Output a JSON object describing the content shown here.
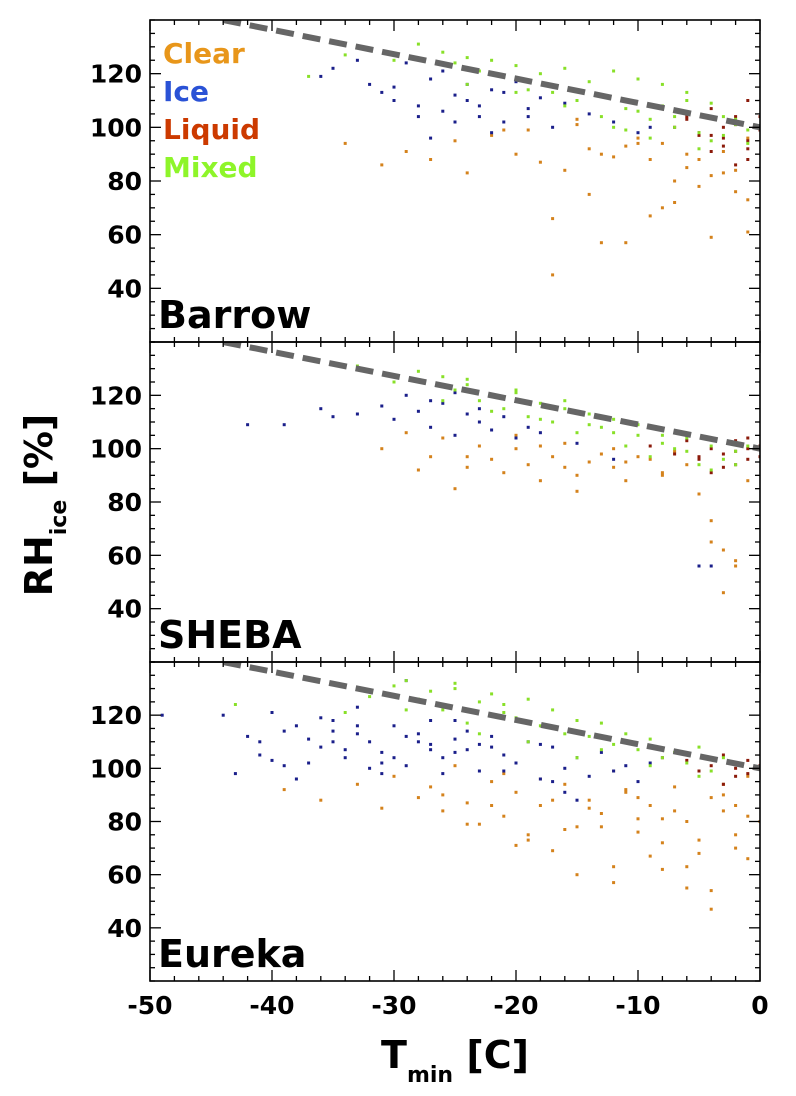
{
  "chart_data": {
    "type": "scatter",
    "xlim": [
      -50,
      0
    ],
    "ylim": [
      20,
      140
    ],
    "x_ticks": [
      "-50",
      "-40",
      "-30",
      "-20",
      "-10",
      "0"
    ],
    "y_ticks": [
      "40",
      "60",
      "80",
      "100",
      "120"
    ],
    "xlabel": {
      "main": "T",
      "sub": "min",
      "unit": " [C]"
    },
    "ylabel": {
      "main": "RH",
      "sub": "ice",
      "unit": " [%]"
    },
    "legend": [
      {
        "name": "Clear",
        "color": "#e8961a"
      },
      {
        "name": "Ice",
        "color": "#2a52d6"
      },
      {
        "name": "Liquid",
        "color": "#cc3a00"
      },
      {
        "name": "Mixed",
        "color": "#8ef52a"
      }
    ],
    "point_colors": {
      "Clear": "#d4821c",
      "Ice": "#1a1f8a",
      "Liquid": "#8b1a0a",
      "Mixed": "#88e028"
    },
    "reference_line": {
      "color": "#666666",
      "x": [
        -44,
        0
      ],
      "y": [
        140,
        100
      ]
    },
    "panels": [
      {
        "name": "Barrow",
        "series": [
          {
            "name": "Mixed",
            "x": [
              -37,
              -34,
              -33,
              -30,
              -28,
              -26,
              -25,
              -24,
              -23,
              -22,
              -21,
              -20,
              -19,
              -18,
              -17,
              -16,
              -15,
              -14,
              -13,
              -12,
              -11,
              -10,
              -9,
              -8,
              -7,
              -6,
              -5,
              -4,
              -3,
              -2,
              -1,
              -13,
              -11,
              -9,
              -7,
              -5,
              -3,
              -24,
              -20,
              -16,
              -12,
              -8,
              -4,
              -2,
              -1,
              -6,
              -10
            ],
            "y": [
              119,
              127,
              130,
              125,
              131,
              128,
              124,
              126,
              121,
              125,
              119,
              123,
              114,
              120,
              113,
              122,
              110,
              117,
              112,
              121,
              107,
              118,
              103,
              116,
              104,
              113,
              98,
              109,
              97,
              101,
              94,
              104,
              99,
              96,
              100,
              92,
              104,
              116,
              113,
              108,
              100,
              108,
              95,
              103,
              99,
              110,
              106
            ]
          },
          {
            "name": "Ice",
            "x": [
              -36,
              -35,
              -32,
              -31,
              -30,
              -29,
              -28,
              -27,
              -26,
              -25,
              -24,
              -23,
              -22,
              -21,
              -20,
              -19,
              -18,
              -17,
              -16,
              -14,
              -12,
              -10,
              -30,
              -28,
              -26,
              -24,
              -22,
              -33,
              -27,
              -25,
              -23,
              -21,
              -19,
              -9
            ],
            "y": [
              119,
              122,
              116,
              113,
              110,
              124,
              108,
              118,
              106,
              112,
              116,
              104,
              114,
              102,
              117,
              107,
              111,
              100,
              109,
              105,
              102,
              98,
              115,
              104,
              121,
              110,
              98,
              125,
              96,
              102,
              108,
              113,
              104,
              100
            ]
          },
          {
            "name": "Liquid",
            "x": [
              -7,
              -6,
              -5,
              -4,
              -3,
              -2,
              -1,
              0,
              -1,
              -2,
              -3,
              -4,
              -5,
              -6,
              -1,
              -2,
              -3,
              0,
              -1,
              -4
            ],
            "y": [
              100,
              104,
              97,
              107,
              93,
              101,
              95,
              99,
              88,
              104,
              96,
              91,
              98,
              103,
              110,
              86,
              100,
              104,
              92,
              97
            ]
          },
          {
            "name": "Clear",
            "x": [
              -34,
              -31,
              -29,
              -27,
              -25,
              -24,
              -22,
              -20,
              -19,
              -18,
              -17,
              -16,
              -15,
              -14,
              -13,
              -12,
              -11,
              -10,
              -9,
              -8,
              -7,
              -6,
              -5,
              -4,
              -3,
              -2,
              -1,
              -17,
              -14,
              -11,
              -9,
              -4,
              -2,
              -1,
              -21,
              -15,
              -13,
              -7,
              -6,
              -5,
              -3,
              -1,
              -10,
              -8
            ],
            "y": [
              94,
              86,
              91,
              88,
              95,
              83,
              97,
              90,
              99,
              87,
              45,
              84,
              101,
              92,
              57,
              89,
              57,
              96,
              67,
              94,
              80,
              85,
              88,
              59,
              91,
              84,
              96,
              66,
              75,
              93,
              88,
              82,
              76,
              61,
              99,
              103,
              90,
              72,
              90,
              78,
              83,
              73,
              94,
              70
            ]
          }
        ]
      },
      {
        "name": "SHEBA",
        "series": [
          {
            "name": "Mixed",
            "x": [
              -33,
              -30,
              -28,
              -26,
              -25,
              -24,
              -23,
              -22,
              -21,
              -20,
              -19,
              -18,
              -17,
              -16,
              -15,
              -14,
              -13,
              -12,
              -11,
              -10,
              -9,
              -8,
              -7,
              -6,
              -5,
              -4,
              -3,
              -2,
              -1,
              -24,
              -20,
              -16,
              -12,
              -8,
              -4,
              -26,
              -22,
              -18,
              -14,
              -10,
              -6,
              -2
            ],
            "y": [
              131,
              125,
              129,
              127,
              122,
              124,
              118,
              120,
              115,
              122,
              112,
              117,
              110,
              118,
              106,
              113,
              108,
              111,
              101,
              109,
              97,
              105,
              100,
              104,
              94,
              101,
              96,
              99,
              101,
              126,
              121,
              115,
              106,
              102,
              92,
              118,
              114,
              111,
              109,
              105,
              99,
              94
            ]
          },
          {
            "name": "Ice",
            "x": [
              -42,
              -39,
              -36,
              -35,
              -33,
              -31,
              -30,
              -29,
              -28,
              -27,
              -26,
              -25,
              -24,
              -23,
              -22,
              -21,
              -20,
              -19,
              -18,
              -15,
              -12,
              -5,
              -4,
              -27,
              -25,
              -23
            ],
            "y": [
              109,
              109,
              115,
              112,
              113,
              116,
              111,
              120,
              114,
              108,
              117,
              105,
              113,
              110,
              107,
              112,
              104,
              108,
              106,
              102,
              96,
              56,
              56,
              118,
              121,
              115
            ]
          },
          {
            "name": "Liquid",
            "x": [
              -9,
              -7,
              -6,
              -5,
              -4,
              -3,
              -2,
              -1,
              0,
              -1,
              -2,
              -3,
              -4,
              -5,
              -1,
              0,
              -2
            ],
            "y": [
              101,
              98,
              103,
              97,
              100,
              93,
              99,
              96,
              101,
              104,
              94,
              98,
              91,
              96,
              100,
              97,
              103
            ]
          },
          {
            "name": "Clear",
            "x": [
              -31,
              -29,
              -27,
              -26,
              -25,
              -24,
              -23,
              -22,
              -21,
              -20,
              -19,
              -18,
              -17,
              -16,
              -15,
              -14,
              -13,
              -12,
              -11,
              -10,
              -9,
              -8,
              -7,
              -6,
              -5,
              -4,
              -3,
              -2,
              -1,
              -28,
              -18,
              -15,
              -11,
              -8,
              -4,
              -3,
              -2,
              -24,
              -20,
              -16,
              -12
            ],
            "y": [
              100,
              106,
              97,
              104,
              85,
              93,
              101,
              96,
              91,
              100,
              94,
              88,
              97,
              102,
              90,
              95,
              98,
              93,
              88,
              97,
              96,
              91,
              99,
              94,
              83,
              65,
              62,
              58,
              88,
              92,
              101,
              84,
              95,
              90,
              73,
              46,
              56,
              97,
              105,
              93,
              100
            ]
          }
        ]
      },
      {
        "name": "Eureka",
        "series": [
          {
            "name": "Mixed",
            "x": [
              -43,
              -34,
              -32,
              -30,
              -29,
              -28,
              -27,
              -26,
              -25,
              -24,
              -23,
              -22,
              -21,
              -20,
              -19,
              -18,
              -17,
              -16,
              -15,
              -14,
              -13,
              -12,
              -11,
              -10,
              -9,
              -8,
              -7,
              -6,
              -5,
              -4,
              -3,
              -25,
              -21,
              -17,
              -13,
              -9,
              -5,
              -29,
              -23,
              -19,
              -15
            ],
            "y": [
              124,
              121,
              127,
              131,
              133,
              126,
              129,
              122,
              130,
              117,
              125,
              128,
              121,
              119,
              126,
              116,
              122,
              113,
              118,
              112,
              117,
              109,
              113,
              107,
              111,
              104,
              106,
              102,
              108,
              99,
              104,
              132,
              124,
              115,
              107,
              101,
              97,
              122,
              113,
              110,
              104
            ]
          },
          {
            "name": "Ice",
            "x": [
              -49,
              -44,
              -43,
              -42,
              -41,
              -40,
              -39,
              -38,
              -37,
              -36,
              -35,
              -34,
              -33,
              -32,
              -31,
              -30,
              -29,
              -28,
              -27,
              -26,
              -25,
              -24,
              -23,
              -22,
              -21,
              -20,
              -19,
              -18,
              -17,
              -16,
              -15,
              -14,
              -13,
              -12,
              -11,
              -10,
              -9,
              -41,
              -39,
              -37,
              -35,
              -33,
              -31,
              -29,
              -27,
              -25,
              -23,
              -38,
              -36,
              -34,
              -32,
              -30,
              -28,
              -26,
              -24,
              -22,
              -20,
              -18,
              -16,
              -40,
              -35,
              -31,
              -27,
              -33,
              -29,
              -25,
              -21,
              -17,
              -15
            ],
            "y": [
              120,
              120,
              98,
              112,
              105,
              121,
              101,
              116,
              111,
              108,
              118,
              104,
              113,
              110,
              106,
              116,
              101,
              113,
              109,
              104,
              111,
              107,
              99,
              112,
              105,
              102,
              110,
              96,
              108,
              100,
              104,
              97,
              106,
              99,
              101,
              95,
              102,
              110,
              114,
              102,
              110,
              116,
              102,
              112,
              118,
              106,
              109,
              96,
              119,
              107,
              100,
              104,
              110,
              98,
              114,
              108,
              102,
              109,
              91,
              103,
              114,
              98,
              107,
              123,
              133,
              118,
              99,
              95,
              88
            ]
          },
          {
            "name": "Liquid",
            "x": [
              -8,
              -6,
              -5,
              -4,
              -3,
              -2,
              -1,
              -2,
              -3,
              -1,
              0
            ],
            "y": [
              104,
              103,
              99,
              101,
              105,
              97,
              103,
              100,
              94,
              98,
              101
            ]
          },
          {
            "name": "Clear",
            "x": [
              -39,
              -36,
              -33,
              -31,
              -30,
              -28,
              -27,
              -26,
              -25,
              -24,
              -23,
              -22,
              -21,
              -20,
              -19,
              -18,
              -17,
              -16,
              -15,
              -14,
              -13,
              -12,
              -11,
              -10,
              -9,
              -8,
              -7,
              -6,
              -5,
              -4,
              -3,
              -2,
              -1,
              0,
              -26,
              -24,
              -22,
              -20,
              -18,
              -16,
              -14,
              -12,
              -10,
              -8,
              -6,
              -4,
              -2,
              -21,
              -17,
              -13,
              -9,
              -5,
              -1,
              -15,
              -11,
              -7,
              -3,
              -19,
              -12,
              -8,
              -6,
              -4,
              -2,
              -1,
              -10,
              -3
            ],
            "y": [
              92,
              88,
              94,
              85,
              97,
              89,
              93,
              84,
              101,
              87,
              79,
              95,
              82,
              91,
              73,
              86,
              69,
              94,
              78,
              88,
              83,
              63,
              91,
              76,
              86,
              72,
              93,
              80,
              68,
              89,
              84,
              75,
              97,
              80,
              90,
              79,
              86,
              71,
              96,
              77,
              85,
              57,
              89,
              81,
              63,
              54,
              86,
              98,
              88,
              78,
              67,
              73,
              82,
              60,
              92,
              84,
              90,
              75,
              99,
              62,
              55,
              47,
              70,
              66,
              81,
              94
            ]
          }
        ]
      }
    ]
  }
}
